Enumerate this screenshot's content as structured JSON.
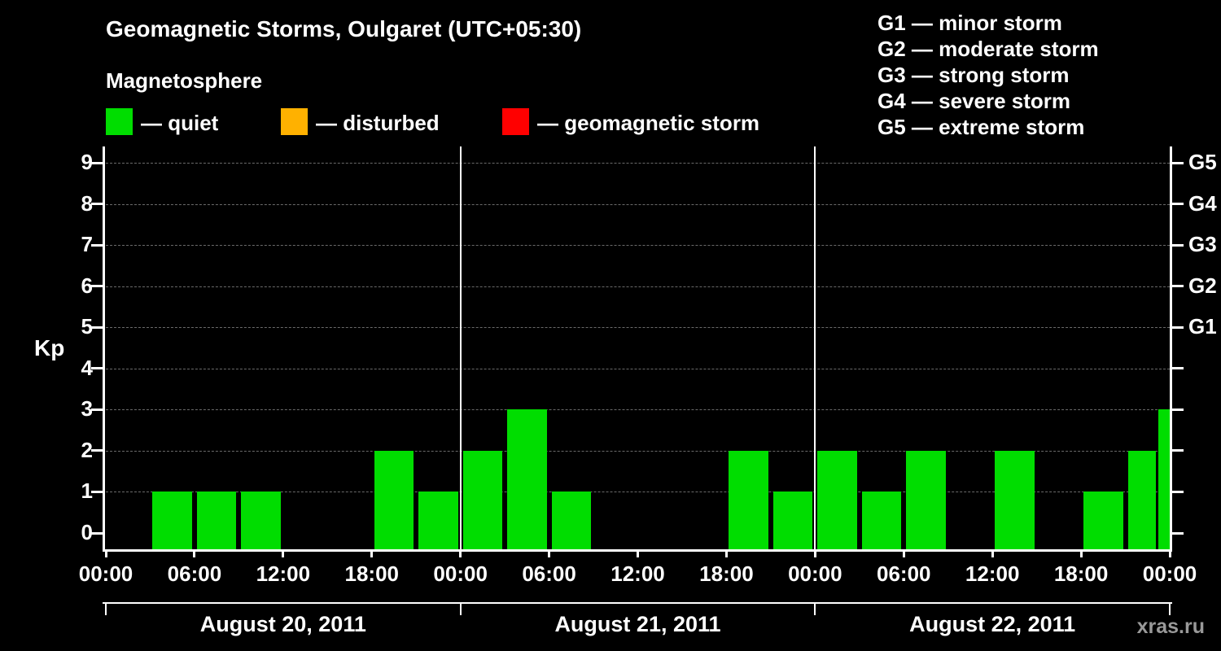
{
  "title": "Geomagnetic Storms, Oulgaret (UTC+05:30)",
  "subtitle": "Magnetosphere",
  "kp_axis_label": "Kp",
  "watermark": "xras.ru",
  "colors": {
    "background": "#000000",
    "bar_quiet": "#00dd00",
    "legend_disturbed": "#ffb100",
    "legend_storm": "#ff0000",
    "grid": "#6a6a6a",
    "axis": "#ffffff",
    "text": "#ffffff",
    "watermark": "#999999"
  },
  "legend": {
    "items": [
      {
        "name": "quiet",
        "label": "— quiet",
        "color": "#00dd00"
      },
      {
        "name": "disturbed",
        "label": "— disturbed",
        "color": "#ffb100"
      },
      {
        "name": "storm",
        "label": "— geomagnetic storm",
        "color": "#ff0000"
      }
    ]
  },
  "g_scale_legend": [
    "G1 — minor storm",
    "G2 — moderate storm",
    "G3 — strong storm",
    "G4 — severe storm",
    "G5 — extreme storm"
  ],
  "chart_data": {
    "type": "bar",
    "title": "Geomagnetic Storms, Oulgaret (UTC+05:30)",
    "xlabel": "",
    "ylabel": "Kp",
    "ylim": [
      0,
      9
    ],
    "yticks": [
      0,
      1,
      2,
      3,
      4,
      5,
      6,
      7,
      8,
      9
    ],
    "right_axis_labels": [
      {
        "kp": 5,
        "label": "G1"
      },
      {
        "kp": 6,
        "label": "G2"
      },
      {
        "kp": 7,
        "label": "G3"
      },
      {
        "kp": 8,
        "label": "G4"
      },
      {
        "kp": 9,
        "label": "G5"
      }
    ],
    "grid": "dashed horizontal line at each Kp level",
    "legend_position": "top",
    "x_hours_span": 72,
    "slot_hours": 3,
    "x_tick_hours": [
      0,
      6,
      12,
      18,
      24,
      30,
      36,
      42,
      48,
      54,
      60,
      66,
      72
    ],
    "x_tick_labels": [
      "00:00",
      "06:00",
      "12:00",
      "18:00",
      "00:00",
      "06:00",
      "12:00",
      "18:00",
      "00:00",
      "06:00",
      "12:00",
      "18:00",
      "00:00"
    ],
    "day_boundaries_hours": [
      24,
      48
    ],
    "days": [
      {
        "date": "August 20, 2011",
        "kp_3h": [
          0,
          1,
          1,
          1,
          0,
          0,
          2,
          1
        ]
      },
      {
        "date": "August 21, 2011",
        "kp_3h": [
          2,
          3,
          1,
          0,
          0,
          0,
          2,
          1
        ]
      },
      {
        "date": "August 22, 2011",
        "kp_3h": [
          2,
          1,
          2,
          0,
          2,
          0,
          1,
          2
        ]
      }
    ],
    "partial_next_day_bar": {
      "kp": 3,
      "clipped_at_right_edge": true
    }
  }
}
